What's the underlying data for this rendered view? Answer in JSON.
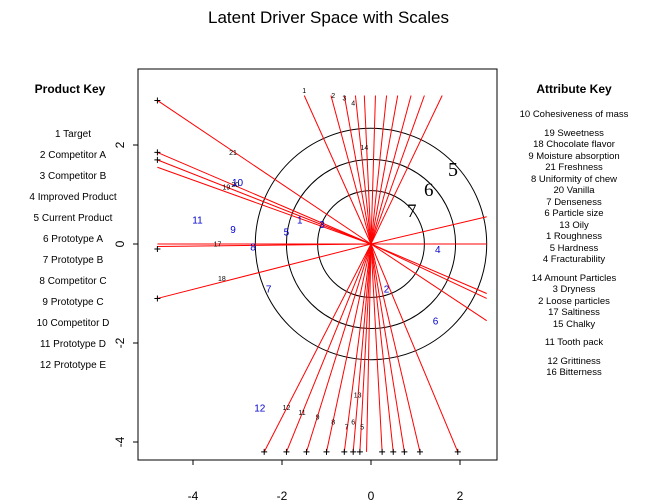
{
  "title": "Latent Driver Space with Scales",
  "product_key": {
    "title": "Product Key",
    "items": [
      "1 Target",
      "2 Competitor A",
      "3 Competitor B",
      "4 Improved Product",
      "5 Current Product",
      "6 Prototype A",
      "7 Prototype B",
      "8 Competitor C",
      "9 Prototype C",
      "10 Competitor D",
      "11 Prototype D",
      "12 Prototype E"
    ]
  },
  "attribute_key": {
    "title": "Attribute Key",
    "groups": [
      [
        "10 Cohesiveness of mass"
      ],
      [
        "19 Sweetness",
        "18 Chocolate flavor",
        "9 Moisture absorption",
        "21 Freshness",
        "8 Uniformity of chew",
        "20 Vanilla",
        "7 Denseness",
        "6 Particle size",
        "13 Oily",
        "1 Roughness",
        "5 Hardness",
        "4 Fracturability"
      ],
      [
        "14 Amount Particles",
        "3 Dryness",
        "2 Loose particles",
        "17 Saltiness",
        "15 Chalky"
      ],
      [
        "11 Tooth pack"
      ],
      [
        "12 Grittiness",
        "16 Bitterness"
      ]
    ]
  },
  "colors": {
    "rays": "#ff0000",
    "products": "#0000cc",
    "axes": "#000000"
  },
  "chart_data": {
    "type": "scatter",
    "title": "Latent Driver Space with Scales",
    "xlabel": "",
    "ylabel": "",
    "xlim": [
      -4.9,
      2.6
    ],
    "ylim": [
      -4.25,
      3.0
    ],
    "x_ticks": [
      -4,
      -2,
      0,
      2
    ],
    "y_ticks": [
      -4,
      -2,
      0,
      2
    ],
    "circle_scales": [
      {
        "label": "5",
        "radius": 2.6
      },
      {
        "label": "6",
        "radius": 1.9
      },
      {
        "label": "7",
        "radius": 1.2
      }
    ],
    "products": [
      {
        "label": "1",
        "x": -1.6,
        "y": 0.5
      },
      {
        "label": "2",
        "x": 0.35,
        "y": -0.9
      },
      {
        "label": "3",
        "x": -1.1,
        "y": 0.4
      },
      {
        "label": "4",
        "x": 1.5,
        "y": -0.1
      },
      {
        "label": "5",
        "x": -1.9,
        "y": 0.25
      },
      {
        "label": "6",
        "x": 1.45,
        "y": -1.55
      },
      {
        "label": "7",
        "x": -2.3,
        "y": -0.9
      },
      {
        "label": "8",
        "x": -2.65,
        "y": -0.05
      },
      {
        "label": "9",
        "x": -3.1,
        "y": 0.3
      },
      {
        "label": "10",
        "x": -3.0,
        "y": 1.25
      },
      {
        "label": "11",
        "x": -3.9,
        "y": 0.5
      },
      {
        "label": "12",
        "x": -2.5,
        "y": -3.3
      }
    ],
    "attribute_rays": [
      {
        "label": "1",
        "x": -1.5,
        "y": 3.0,
        "label_x": -1.5,
        "label_y": 3.05
      },
      {
        "label": "2",
        "x": -0.9,
        "y": 3.0,
        "label_x": -0.85,
        "label_y": 2.95
      },
      {
        "label": "3",
        "x": -0.6,
        "y": 3.0,
        "label_x": -0.6,
        "label_y": 2.9
      },
      {
        "label": "4",
        "x": -0.35,
        "y": 3.0,
        "label_x": -0.4,
        "label_y": 2.8
      },
      {
        "label": "",
        "x": -0.15,
        "y": 3.0,
        "label_x": null,
        "label_y": null
      },
      {
        "label": "",
        "x": 0.1,
        "y": 3.0,
        "label_x": null,
        "label_y": null
      },
      {
        "label": "",
        "x": 0.35,
        "y": 3.0,
        "label_x": null,
        "label_y": null
      },
      {
        "label": "",
        "x": 0.6,
        "y": 3.0,
        "label_x": null,
        "label_y": null
      },
      {
        "label": "",
        "x": 0.9,
        "y": 3.0,
        "label_x": null,
        "label_y": null
      },
      {
        "label": "",
        "x": 1.2,
        "y": 3.0,
        "label_x": null,
        "label_y": null
      },
      {
        "label": "14",
        "x": 1.6,
        "y": 3.0,
        "label_x": -0.15,
        "label_y": 1.9
      },
      {
        "label": "21",
        "x": -4.8,
        "y": 2.9,
        "label_x": -3.1,
        "label_y": 1.8
      },
      {
        "label": "",
        "x": -4.8,
        "y": 1.85,
        "label_x": null,
        "label_y": null
      },
      {
        "label": "19",
        "x": -4.8,
        "y": 1.7,
        "label_x": -3.25,
        "label_y": 1.1
      },
      {
        "label": "20",
        "x": -4.8,
        "y": 1.55,
        "label_x": -3.05,
        "label_y": 1.15
      },
      {
        "label": "17",
        "x": -4.8,
        "y": -0.05,
        "label_x": -3.45,
        "label_y": -0.05
      },
      {
        "label": "18",
        "x": -4.8,
        "y": -1.1,
        "label_x": -3.35,
        "label_y": -0.75
      },
      {
        "label": "",
        "x": 2.6,
        "y": 0.55,
        "label_x": null,
        "label_y": null
      },
      {
        "label": "",
        "x": 2.6,
        "y": 0.0,
        "label_x": null,
        "label_y": null
      },
      {
        "label": "",
        "x": 2.6,
        "y": -1.0,
        "label_x": null,
        "label_y": null
      },
      {
        "label": "",
        "x": 2.6,
        "y": -1.1,
        "label_x": null,
        "label_y": null
      },
      {
        "label": "",
        "x": 2.6,
        "y": -1.55,
        "label_x": null,
        "label_y": null
      },
      {
        "label": "12",
        "x": -2.4,
        "y": -4.2,
        "label_x": -1.9,
        "label_y": -3.35
      },
      {
        "label": "11",
        "x": -1.9,
        "y": -4.2,
        "label_x": -1.55,
        "label_y": -3.45
      },
      {
        "label": "9",
        "x": -1.45,
        "y": -4.2,
        "label_x": -1.2,
        "label_y": -3.55
      },
      {
        "label": "8",
        "x": -1.0,
        "y": -4.2,
        "label_x": -0.85,
        "label_y": -3.65
      },
      {
        "label": "7",
        "x": -0.6,
        "y": -4.2,
        "label_x": -0.55,
        "label_y": -3.75
      },
      {
        "label": "6",
        "x": -0.4,
        "y": -4.2,
        "label_x": -0.4,
        "label_y": -3.65
      },
      {
        "label": "5",
        "x": -0.25,
        "y": -4.2,
        "label_x": -0.2,
        "label_y": -3.75
      },
      {
        "label": "13",
        "x": -0.1,
        "y": -4.2,
        "label_x": -0.3,
        "label_y": -3.1
      },
      {
        "label": "",
        "x": 0.25,
        "y": -4.2,
        "label_x": null,
        "label_y": null
      },
      {
        "label": "",
        "x": 0.5,
        "y": -4.2,
        "label_x": null,
        "label_y": null
      },
      {
        "label": "",
        "x": 0.75,
        "y": -4.2,
        "label_x": null,
        "label_y": null
      },
      {
        "label": "",
        "x": 1.1,
        "y": -4.2,
        "label_x": null,
        "label_y": null
      },
      {
        "label": "",
        "x": 1.95,
        "y": -4.2,
        "label_x": null,
        "label_y": null
      }
    ],
    "ray_endpoint_markers": [
      {
        "x": -4.8,
        "y": 2.9
      },
      {
        "x": -4.8,
        "y": 1.85
      },
      {
        "x": -4.8,
        "y": 1.7
      },
      {
        "x": -4.8,
        "y": -0.1
      },
      {
        "x": -4.8,
        "y": -1.1
      },
      {
        "x": -2.4,
        "y": -4.2
      },
      {
        "x": -1.9,
        "y": -4.2
      },
      {
        "x": -1.45,
        "y": -4.2
      },
      {
        "x": -1.0,
        "y": -4.2
      },
      {
        "x": -0.6,
        "y": -4.2
      },
      {
        "x": -0.4,
        "y": -4.2
      },
      {
        "x": -0.25,
        "y": -4.2
      },
      {
        "x": 0.25,
        "y": -4.2
      },
      {
        "x": 0.5,
        "y": -4.2
      },
      {
        "x": 0.75,
        "y": -4.2
      },
      {
        "x": 1.1,
        "y": -4.2
      },
      {
        "x": 1.95,
        "y": -4.2
      }
    ]
  }
}
